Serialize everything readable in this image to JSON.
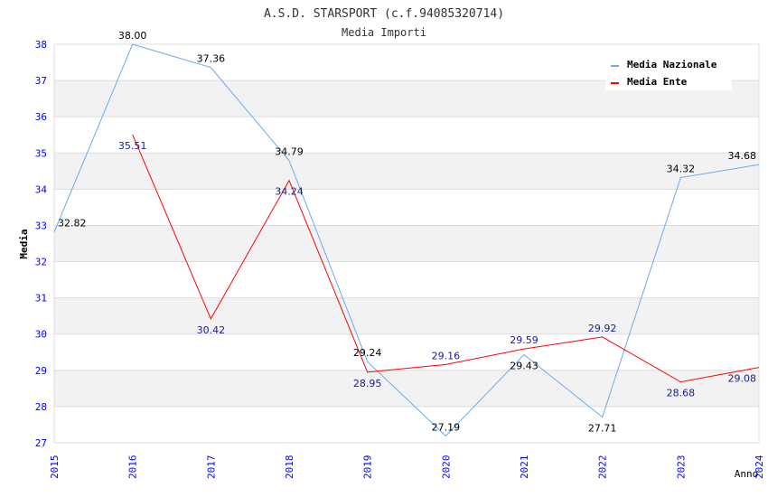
{
  "chart_data": {
    "type": "line",
    "title": "A.S.D. STARSPORT (c.f.94085320714)",
    "subtitle": "Media Importi",
    "xlabel": "Anno",
    "ylabel": "Media",
    "x": [
      2015,
      2016,
      2017,
      2018,
      2019,
      2020,
      2021,
      2022,
      2023,
      2024
    ],
    "ylim": [
      27,
      38
    ],
    "yticks": [
      27,
      28,
      29,
      30,
      31,
      32,
      33,
      34,
      35,
      36,
      37,
      38
    ],
    "legend_position": "top-right",
    "series": [
      {
        "name": "Media Nazionale",
        "color": "#6aaaf0",
        "label_color": "#000000",
        "values": [
          32.82,
          38.0,
          37.36,
          34.79,
          29.24,
          27.19,
          29.43,
          27.71,
          34.32,
          34.68
        ]
      },
      {
        "name": "Media Ente",
        "color": "#ff0000",
        "label_color": "#1a1a9a",
        "values": [
          null,
          35.51,
          30.42,
          34.24,
          28.95,
          29.16,
          29.59,
          29.92,
          28.68,
          29.08
        ]
      }
    ]
  }
}
